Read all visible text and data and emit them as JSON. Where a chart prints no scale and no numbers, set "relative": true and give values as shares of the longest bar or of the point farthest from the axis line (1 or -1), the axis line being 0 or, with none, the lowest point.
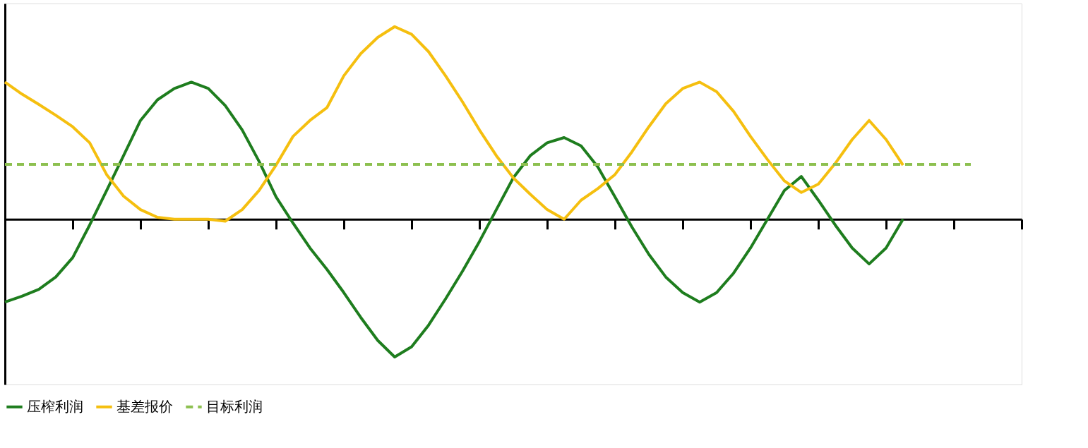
{
  "chart_data": {
    "type": "line",
    "relative": true,
    "grid": false,
    "legend": "bottom",
    "marker": "none",
    "categories": [
      null,
      null,
      null,
      null,
      null,
      null,
      null,
      null,
      null,
      null,
      null,
      null,
      null,
      null,
      null,
      null,
      null,
      null,
      null,
      null,
      null,
      null,
      null,
      null,
      null,
      null,
      null,
      null,
      null,
      null,
      null,
      null,
      null,
      null,
      null,
      null,
      null,
      null,
      null,
      null,
      null,
      null,
      null,
      null,
      null,
      null,
      null,
      null,
      null,
      null,
      null,
      null,
      null,
      null,
      null,
      null,
      null,
      null,
      null,
      null,
      null
    ],
    "series": [
      {
        "name": "压榨利润",
        "color": "#1e7d1e",
        "line_style": "solid",
        "values": [
          -0.43,
          -0.4,
          -0.364,
          -0.3,
          -0.199,
          -0.03,
          0.149,
          0.33,
          0.513,
          0.62,
          0.679,
          0.712,
          0.679,
          0.59,
          0.464,
          0.3,
          0.116,
          -0.02,
          -0.149,
          -0.26,
          -0.381,
          -0.51,
          -0.629,
          -0.715,
          -0.662,
          -0.55,
          -0.414,
          -0.27,
          -0.116,
          0.05,
          0.215,
          0.33,
          0.397,
          0.424,
          0.381,
          0.27,
          0.116,
          -0.04,
          -0.182,
          -0.3,
          -0.381,
          -0.43,
          -0.381,
          -0.28,
          -0.149,
          0,
          0.149,
          0.222,
          0.099,
          -0.03,
          -0.149,
          -0.232,
          -0.149,
          0,
          null,
          null,
          null,
          null,
          null,
          null,
          null
        ]
      },
      {
        "name": "基差报价",
        "color": "#f5bf0f",
        "line_style": "solid",
        "values": [
          0.712,
          0.65,
          0.596,
          0.54,
          0.48,
          0.397,
          0.232,
          0.12,
          0.05,
          0.01,
          0,
          0,
          0,
          -0.01,
          0.05,
          0.15,
          0.281,
          0.43,
          0.513,
          0.579,
          0.745,
          0.86,
          0.944,
          1,
          0.96,
          0.87,
          0.745,
          0.61,
          0.464,
          0.33,
          0.215,
          0.13,
          0.05,
          0,
          0.099,
          0.16,
          0.232,
          0.35,
          0.48,
          0.6,
          0.679,
          0.712,
          0.662,
          0.56,
          0.43,
          0.31,
          0.199,
          0.139,
          0.182,
          0.29,
          0.414,
          0.513,
          0.414,
          0.281,
          null,
          null,
          null,
          null,
          null,
          null,
          null
        ]
      },
      {
        "name": "目标利润",
        "color": "#8dc050",
        "line_style": "dashed",
        "values": [
          0.285,
          0.285,
          0.285,
          0.285,
          0.285,
          0.285,
          0.285,
          0.285,
          0.285,
          0.285,
          0.285,
          0.285,
          0.285,
          0.285,
          0.285,
          0.285,
          0.285,
          0.285,
          0.285,
          0.285,
          0.285,
          0.285,
          0.285,
          0.285,
          0.285,
          0.285,
          0.285,
          0.285,
          0.285,
          0.285,
          0.285,
          0.285,
          0.285,
          0.285,
          0.285,
          0.285,
          0.285,
          0.285,
          0.285,
          0.285,
          0.285,
          0.285,
          0.285,
          0.285,
          0.285,
          0.285,
          0.285,
          0.285,
          0.285,
          0.285,
          0.285,
          0.285,
          0.285,
          0.285,
          0.285,
          0.285,
          0.285,
          0.285,
          null,
          null,
          null
        ]
      }
    ]
  }
}
